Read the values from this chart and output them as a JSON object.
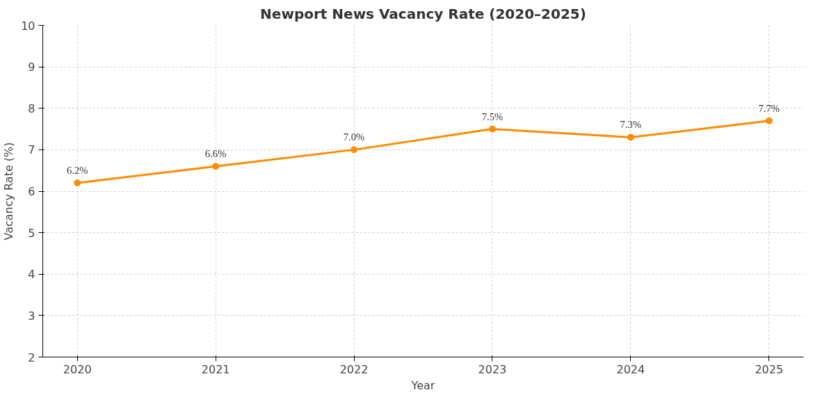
{
  "chart_data": {
    "type": "line",
    "title": "Newport News Vacancy Rate (2020–2025)",
    "xlabel": "Year",
    "ylabel": "Vacancy Rate (%)",
    "x": [
      2020,
      2021,
      2022,
      2023,
      2024,
      2025
    ],
    "series": [
      {
        "color": "#ff8c00",
        "values": [
          6.2,
          6.6,
          7.0,
          7.5,
          7.3,
          7.7
        ],
        "value_labels": [
          "6.2%",
          "6.6%",
          "7.0%",
          "7.5%",
          "7.3%",
          "7.7%"
        ]
      }
    ],
    "xlim": [
      2019.75,
      2025.25
    ],
    "xticks": [
      2020,
      2021,
      2022,
      2023,
      2024,
      2025
    ],
    "ylim": [
      2,
      10
    ],
    "yticks": [
      2,
      3,
      4,
      5,
      6,
      7,
      8,
      9,
      10
    ],
    "grid": true,
    "marker": "circle",
    "line_style": "solid"
  }
}
